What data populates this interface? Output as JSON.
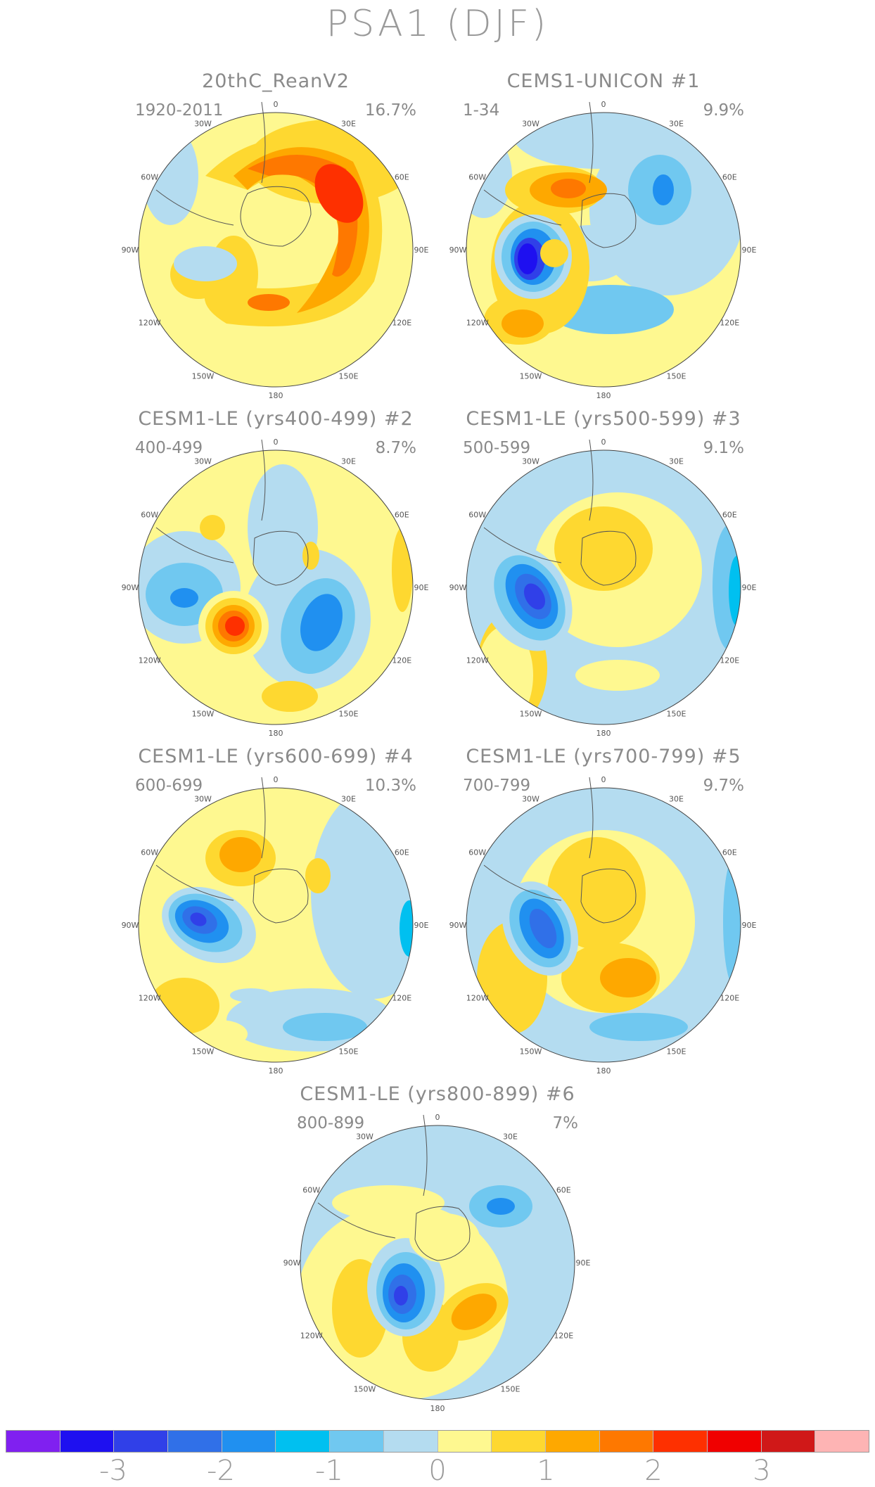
{
  "title": "PSA1 (DJF)",
  "lon_labels": [
    "0",
    "30E",
    "60E",
    "90E",
    "120E",
    "150E",
    "180",
    "150W",
    "120W",
    "90W",
    "60W",
    "30W"
  ],
  "panels": [
    {
      "title": "20thC_ReanV2",
      "period": "1920-2011",
      "variance": "16.7%"
    },
    {
      "title": "CEMS1-UNICON        #1",
      "period": "1-34",
      "variance": "9.9%"
    },
    {
      "title": "CESM1-LE (yrs400-499) #2",
      "period": "400-499",
      "variance": "8.7%"
    },
    {
      "title": "CESM1-LE (yrs500-599) #3",
      "period": "500-599",
      "variance": "9.1%"
    },
    {
      "title": "CESM1-LE (yrs600-699) #4",
      "period": "600-699",
      "variance": "10.3%"
    },
    {
      "title": "CESM1-LE (yrs700-799) #5",
      "period": "700-799",
      "variance": "9.7%"
    },
    {
      "title": "CESM1-LE (yrs800-899) #6",
      "period": "800-899",
      "variance": "7%"
    }
  ],
  "colorbar": {
    "colors": [
      "#8020f0",
      "#1e10f0",
      "#3040e8",
      "#3070e8",
      "#2090f0",
      "#00c0f0",
      "#70c8f0",
      "#b4dcf0",
      "#fef890",
      "#fed830",
      "#fea800",
      "#fe7800",
      "#fe3000",
      "#f00000",
      "#d01818",
      "#feb4b4"
    ],
    "tick_labels": [
      "-3",
      "-2",
      "-1",
      "0",
      "1",
      "2",
      "3"
    ]
  }
}
